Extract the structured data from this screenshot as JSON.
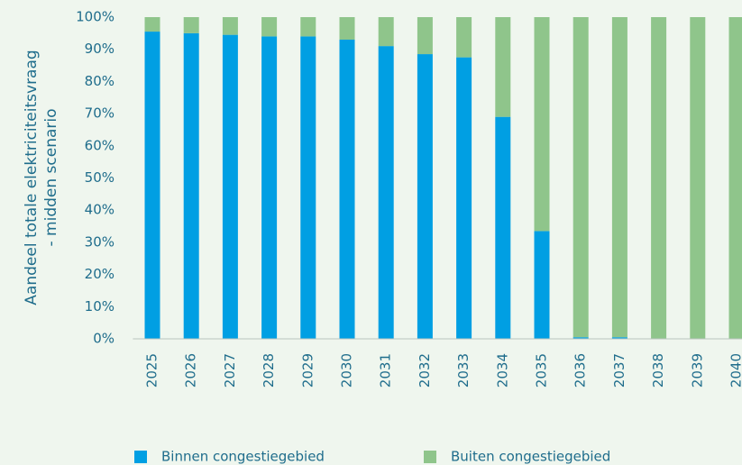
{
  "chart_data": {
    "type": "stacked_bar",
    "y_label": [
      "Aandeel totale elektriciteitsvraag",
      "- midden scenario"
    ],
    "categories": [
      "2025",
      "2026",
      "2027",
      "2028",
      "2029",
      "2030",
      "2031",
      "2032",
      "2033",
      "2034",
      "2035",
      "2036",
      "2037",
      "2038",
      "2039",
      "2040"
    ],
    "series": [
      {
        "name": "Binnen congestiegebied",
        "color": "#009fe3",
        "values": [
          95.5,
          95,
          94.5,
          94,
          94,
          93,
          91,
          88.5,
          87.5,
          69,
          33.5,
          0.5,
          0.5,
          0,
          0,
          0
        ]
      },
      {
        "name": "Buiten congestiegebied",
        "color": "#8fc58b",
        "values": [
          4.5,
          5,
          5.5,
          6,
          6,
          7,
          9,
          11.5,
          12.5,
          31,
          66.5,
          99.5,
          99.5,
          100,
          100,
          100
        ]
      }
    ],
    "ylim": [
      0,
      100
    ],
    "yticks": [
      {
        "value": 0,
        "label": "0%"
      },
      {
        "value": 10,
        "label": "10%"
      },
      {
        "value": 20,
        "label": "20%"
      },
      {
        "value": 30,
        "label": "30%"
      },
      {
        "value": 40,
        "label": "40%"
      },
      {
        "value": 50,
        "label": "50%"
      },
      {
        "value": 60,
        "label": "60%"
      },
      {
        "value": 70,
        "label": "70%"
      },
      {
        "value": 80,
        "label": "80%"
      },
      {
        "value": 90,
        "label": "90%"
      },
      {
        "value": 100,
        "label": "100%"
      }
    ],
    "grid": false,
    "legend": "bottom"
  }
}
